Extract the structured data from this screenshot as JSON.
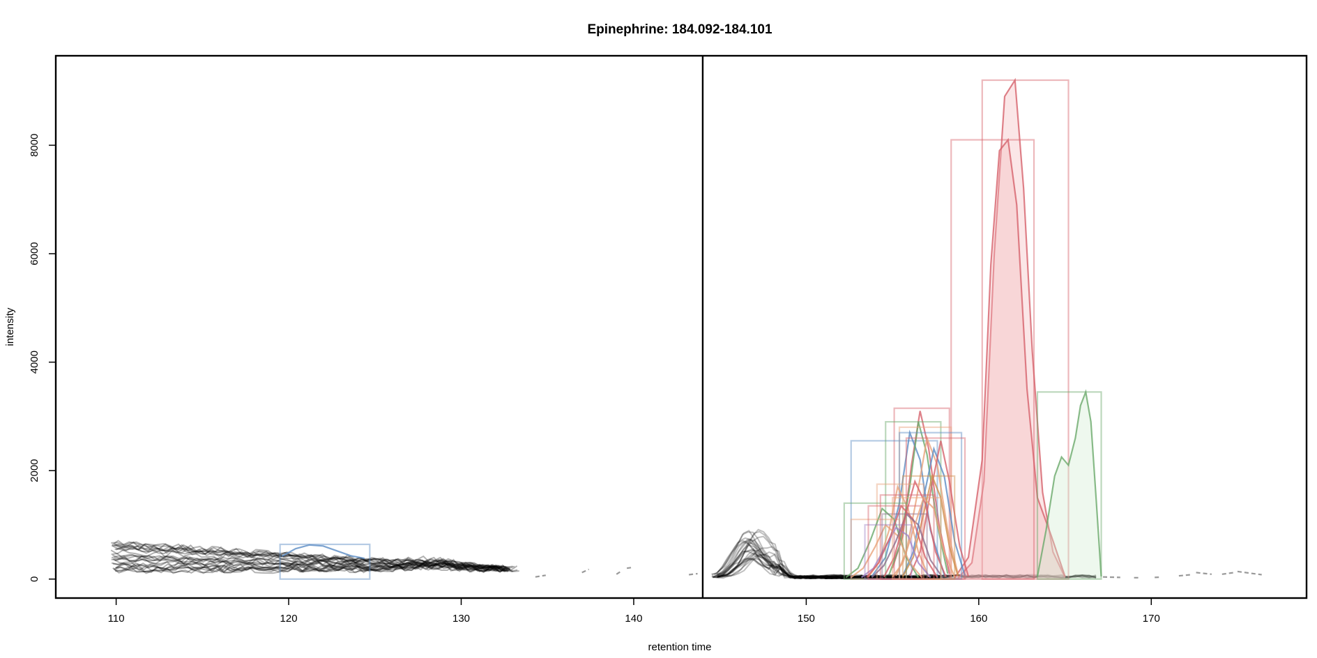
{
  "chart_data": {
    "type": "line",
    "title": "Epinephrine: 184.092-184.101",
    "xlabel": "retention time",
    "ylabel": "intensity",
    "xlim": [
      106.5,
      179
    ],
    "ylim": [
      -350,
      9650
    ],
    "x_ticks": [
      110,
      120,
      130,
      140,
      150,
      160,
      170
    ],
    "y_ticks": [
      0,
      2000,
      4000,
      6000,
      8000
    ],
    "panel_divider_x": 144,
    "grid": false,
    "legend": "none",
    "background_traces": {
      "color": "#000000",
      "left_group": {
        "count": 26,
        "x_start": 109.7,
        "x_end": 133.6,
        "y_min": 100,
        "y_max": 900
      },
      "right_group": {
        "count": 26,
        "x_start": 144.5,
        "x_end": 149.5,
        "peak_x": 146.9,
        "y_max": 950
      },
      "fragments": [
        [
          [
            134.3,
            40
          ],
          [
            134.9,
            70
          ]
        ],
        [
          [
            137.0,
            120
          ],
          [
            137.4,
            180
          ]
        ],
        [
          [
            139.0,
            90
          ],
          [
            139.3,
            150
          ]
        ],
        [
          [
            139.6,
            200
          ],
          [
            140.0,
            220
          ]
        ],
        [
          [
            143.2,
            80
          ],
          [
            143.7,
            100
          ]
        ],
        [
          [
            167.2,
            40
          ],
          [
            168.2,
            30
          ]
        ],
        [
          [
            169.0,
            25
          ],
          [
            169.4,
            25
          ]
        ],
        [
          [
            170.2,
            30
          ],
          [
            170.6,
            35
          ]
        ],
        [
          [
            171.6,
            60
          ],
          [
            172.3,
            80
          ]
        ],
        [
          [
            172.6,
            120
          ],
          [
            173.5,
            90
          ]
        ],
        [
          [
            174.1,
            90
          ],
          [
            174.8,
            120
          ]
        ],
        [
          [
            175.0,
            140
          ],
          [
            176.4,
            80
          ]
        ]
      ]
    },
    "peaks": [
      {
        "color": "#d6616b",
        "fill": "#f4b6bb",
        "x": [
          158.8,
          159.6,
          160.3,
          160.9,
          161.5,
          162.1,
          162.6,
          163.1,
          163.7,
          164.3,
          165.0
        ],
        "y": [
          20,
          300,
          1800,
          6000,
          8900,
          9200,
          7200,
          4200,
          1600,
          500,
          30
        ],
        "box": [
          160.2,
          165.2,
          0,
          9200
        ]
      },
      {
        "color": "#d6616b",
        "fill": "#f4b6bb",
        "x": [
          158.6,
          159.4,
          160.2,
          160.7,
          161.2,
          161.7,
          162.2,
          162.8,
          163.4,
          164.2,
          165.0
        ],
        "y": [
          20,
          400,
          2200,
          5800,
          7900,
          8100,
          6900,
          3500,
          1500,
          800,
          50
        ],
        "box": [
          158.4,
          163.2,
          0,
          8100
        ]
      },
      {
        "color": "#6aa96a",
        "fill": "#cfeacd",
        "x": [
          163.4,
          163.9,
          164.4,
          164.8,
          165.2,
          165.6,
          165.9,
          166.2,
          166.5,
          166.8,
          167.1
        ],
        "y": [
          50,
          900,
          1900,
          2250,
          2100,
          2600,
          3200,
          3450,
          2900,
          1500,
          50
        ],
        "box": [
          163.4,
          167.1,
          0,
          3450
        ]
      },
      {
        "color": "#d6616b",
        "x": [
          155.0,
          155.6,
          156.1,
          156.6,
          157.1,
          157.7,
          158.3
        ],
        "y": [
          200,
          800,
          2100,
          3100,
          2400,
          1000,
          100
        ],
        "box": [
          155.1,
          158.3,
          0,
          3150
        ]
      },
      {
        "color": "#5b8cc4",
        "x": [
          153.8,
          154.6,
          155.4,
          156.0,
          156.6,
          157.2,
          158.0
        ],
        "y": [
          50,
          400,
          1400,
          2700,
          2200,
          900,
          80
        ],
        "box": [
          152.6,
          157.6,
          0,
          2550
        ]
      },
      {
        "color": "#6aa96a",
        "x": [
          154.8,
          155.4,
          156.0,
          156.5,
          157.0,
          157.6,
          158.2
        ],
        "y": [
          80,
          600,
          1700,
          2900,
          2300,
          1000,
          100
        ],
        "box": [
          154.6,
          157.8,
          0,
          2900
        ]
      },
      {
        "color": "#e8a27a",
        "x": [
          155.2,
          155.8,
          156.4,
          157.0,
          157.6,
          158.2,
          158.8
        ],
        "y": [
          60,
          500,
          1500,
          2600,
          2100,
          900,
          80
        ],
        "box": [
          155.4,
          158.4,
          0,
          2800
        ]
      },
      {
        "color": "#5b8cc4",
        "x": [
          155.6,
          156.2,
          156.8,
          157.4,
          158.0,
          158.6,
          159.2
        ],
        "y": [
          60,
          500,
          1500,
          2400,
          1900,
          700,
          60
        ],
        "box": [
          155.4,
          159.0,
          0,
          2700
        ]
      },
      {
        "color": "#d6616b",
        "x": [
          156.0,
          156.6,
          157.2,
          157.8,
          158.3,
          158.9,
          159.4
        ],
        "y": [
          60,
          500,
          1600,
          2550,
          1800,
          600,
          50
        ],
        "box": [
          155.8,
          159.2,
          0,
          2600
        ]
      },
      {
        "color": "#ce8e4c",
        "x": [
          155.6,
          156.2,
          156.8,
          157.3,
          157.8,
          158.3,
          158.8
        ],
        "y": [
          50,
          400,
          1200,
          1900,
          1500,
          600,
          50
        ],
        "box": [
          155.6,
          158.6,
          0,
          1900
        ]
      },
      {
        "color": "#e8a27a",
        "x": [
          153.6,
          154.2,
          154.8,
          155.3,
          155.9,
          156.5,
          157.1
        ],
        "y": [
          40,
          300,
          900,
          1700,
          1300,
          500,
          40
        ],
        "box": [
          154.1,
          156.8,
          0,
          1750
        ]
      },
      {
        "color": "#6aa96a",
        "x": [
          152.3,
          153.0,
          153.7,
          154.4,
          155.1,
          155.8,
          156.5
        ],
        "y": [
          30,
          200,
          700,
          1300,
          1100,
          400,
          30
        ],
        "box": [
          152.2,
          155.8,
          0,
          1400
        ]
      },
      {
        "color": "#e8a27a",
        "x": [
          152.6,
          153.3,
          154.0,
          154.6,
          155.3,
          156.0,
          156.7
        ],
        "y": [
          30,
          200,
          600,
          1000,
          800,
          300,
          30
        ],
        "box": [
          152.6,
          155.4,
          0,
          1100
        ]
      },
      {
        "color": "#a084c8",
        "x": [
          153.2,
          153.9,
          154.6,
          155.2,
          155.9,
          156.5,
          157.2
        ],
        "y": [
          30,
          200,
          600,
          950,
          800,
          300,
          30
        ],
        "box": [
          153.4,
          156.1,
          0,
          1000
        ]
      },
      {
        "color": "#d6616b",
        "x": [
          153.5,
          154.2,
          154.9,
          155.5,
          156.2,
          156.9,
          157.6
        ],
        "y": [
          30,
          300,
          800,
          1350,
          1100,
          400,
          30
        ],
        "box": [
          153.6,
          156.7,
          0,
          1350
        ]
      },
      {
        "color": "#8c6d8c",
        "x": [
          153.8,
          154.5,
          155.2,
          155.8,
          156.5,
          157.2,
          157.9
        ],
        "y": [
          30,
          250,
          700,
          1200,
          1000,
          350,
          30
        ],
        "box": [
          154.4,
          157.0,
          0,
          1200
        ]
      },
      {
        "color": "#5b8cc4",
        "x": [
          119.6,
          120.4,
          121.2,
          122.0,
          122.8,
          123.6,
          124.4
        ],
        "y": [
          420,
          560,
          630,
          610,
          520,
          430,
          380
        ],
        "box": [
          119.5,
          124.7,
          0,
          640
        ]
      },
      {
        "color": "#d6616b",
        "x": [
          154.5,
          155.1,
          155.7,
          156.3,
          156.9,
          157.5,
          158.1
        ],
        "y": [
          40,
          400,
          1100,
          1800,
          1400,
          500,
          40
        ],
        "box": [
          154.3,
          157.4,
          0,
          1550
        ]
      },
      {
        "color": "#e8a27a",
        "x": [
          155.0,
          155.6,
          156.2,
          156.8,
          157.4,
          158.0,
          158.6
        ],
        "y": [
          40,
          300,
          900,
          1500,
          1300,
          500,
          40
        ],
        "box": [
          155.0,
          157.8,
          0,
          1500
        ]
      }
    ]
  }
}
